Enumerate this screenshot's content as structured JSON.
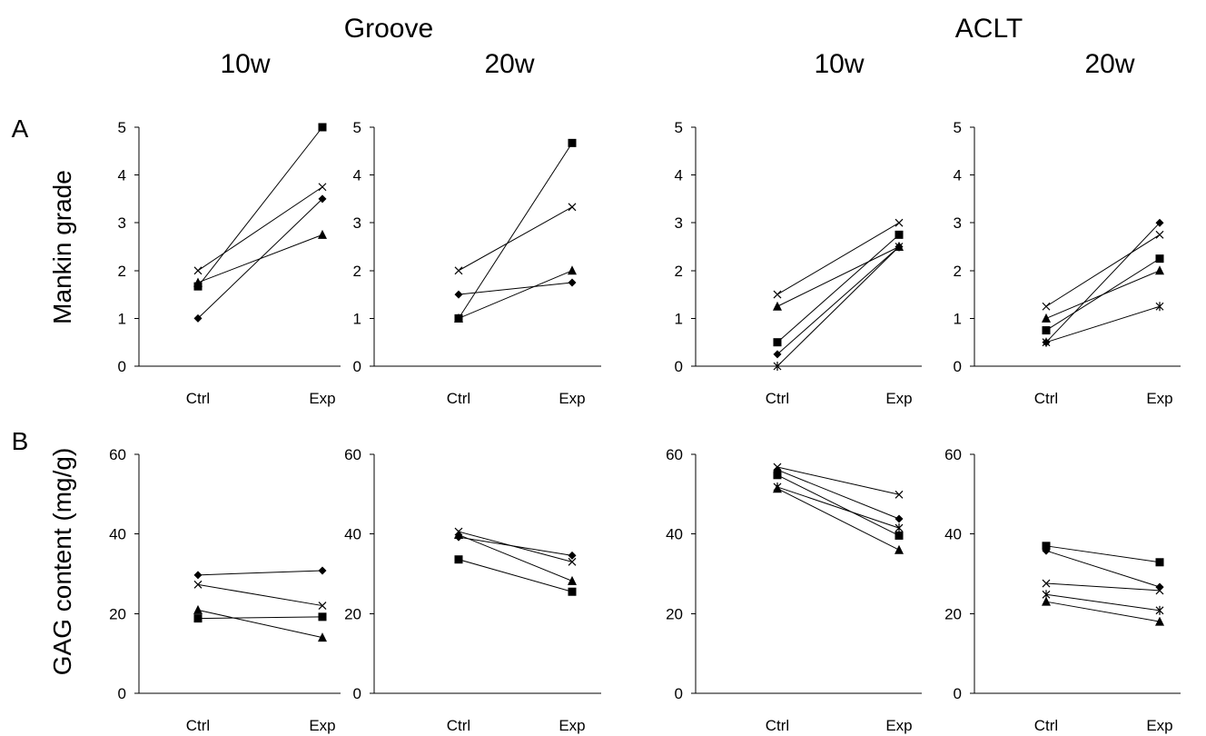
{
  "groups": [
    {
      "label": "Groove",
      "subcharts": [
        "10w",
        "20w"
      ]
    },
    {
      "label": "ACLT",
      "subcharts": [
        "10w",
        "20w"
      ]
    }
  ],
  "rows": [
    {
      "letter": "A",
      "ylabel": "Mankin grade",
      "yticks": [
        "0",
        "1",
        "2",
        "3",
        "4",
        "5"
      ],
      "ylim": [
        0,
        5
      ]
    },
    {
      "letter": "B",
      "ylabel": "GAG content (mg/g)",
      "yticks": [
        "0",
        "20",
        "40",
        "60"
      ],
      "ylim": [
        0,
        60
      ]
    }
  ],
  "chart_data": [
    {
      "type": "line",
      "group": "Groove",
      "timepoint": "10w",
      "row": "A",
      "categories": [
        "Ctrl",
        "Exp"
      ],
      "ylim": [
        0,
        5
      ],
      "ylabel": "Mankin grade",
      "series": [
        {
          "marker": "diamond",
          "values": [
            1.0,
            3.5
          ]
        },
        {
          "marker": "square",
          "values": [
            1.67,
            5.0
          ]
        },
        {
          "marker": "triangle",
          "values": [
            1.75,
            2.75
          ]
        },
        {
          "marker": "x",
          "values": [
            2.0,
            3.75
          ]
        }
      ]
    },
    {
      "type": "line",
      "group": "Groove",
      "timepoint": "20w",
      "row": "A",
      "categories": [
        "Ctrl",
        "Exp"
      ],
      "ylim": [
        0,
        5
      ],
      "series": [
        {
          "marker": "diamond",
          "values": [
            1.5,
            1.75
          ]
        },
        {
          "marker": "square",
          "values": [
            1.0,
            4.67
          ]
        },
        {
          "marker": "triangle",
          "values": [
            1.0,
            2.0
          ]
        },
        {
          "marker": "x",
          "values": [
            2.0,
            3.33
          ]
        }
      ]
    },
    {
      "type": "line",
      "group": "ACLT",
      "timepoint": "10w",
      "row": "A",
      "categories": [
        "Ctrl",
        "Exp"
      ],
      "ylim": [
        0,
        5
      ],
      "series": [
        {
          "marker": "diamond",
          "values": [
            0.25,
            2.5
          ]
        },
        {
          "marker": "square",
          "values": [
            0.5,
            2.75
          ]
        },
        {
          "marker": "triangle",
          "values": [
            1.25,
            2.5
          ]
        },
        {
          "marker": "x",
          "values": [
            1.5,
            3.0
          ]
        },
        {
          "marker": "star",
          "values": [
            0.0,
            2.5
          ]
        }
      ]
    },
    {
      "type": "line",
      "group": "ACLT",
      "timepoint": "20w",
      "row": "A",
      "categories": [
        "Ctrl",
        "Exp"
      ],
      "ylim": [
        0,
        5
      ],
      "series": [
        {
          "marker": "diamond",
          "values": [
            0.5,
            3.0
          ]
        },
        {
          "marker": "square",
          "values": [
            0.75,
            2.25
          ]
        },
        {
          "marker": "triangle",
          "values": [
            1.0,
            2.0
          ]
        },
        {
          "marker": "x",
          "values": [
            1.25,
            2.75
          ]
        },
        {
          "marker": "star",
          "values": [
            0.5,
            1.25
          ]
        }
      ]
    },
    {
      "type": "line",
      "group": "Groove",
      "timepoint": "10w",
      "row": "B",
      "categories": [
        "Ctrl",
        "Exp"
      ],
      "ylim": [
        0,
        60
      ],
      "ylabel": "GAG content (mg/g)",
      "series": [
        {
          "marker": "diamond",
          "values": [
            29.7,
            30.8
          ]
        },
        {
          "marker": "square",
          "values": [
            18.8,
            19.2
          ]
        },
        {
          "marker": "triangle",
          "values": [
            20.9,
            14.0
          ]
        },
        {
          "marker": "x",
          "values": [
            27.3,
            22.0
          ]
        }
      ]
    },
    {
      "type": "line",
      "group": "Groove",
      "timepoint": "20w",
      "row": "B",
      "categories": [
        "Ctrl",
        "Exp"
      ],
      "ylim": [
        0,
        60
      ],
      "series": [
        {
          "marker": "diamond",
          "values": [
            39.2,
            34.6
          ]
        },
        {
          "marker": "square",
          "values": [
            33.6,
            25.5
          ]
        },
        {
          "marker": "triangle",
          "values": [
            39.8,
            28.2
          ]
        },
        {
          "marker": "x",
          "values": [
            40.6,
            33.0
          ]
        }
      ]
    },
    {
      "type": "line",
      "group": "ACLT",
      "timepoint": "10w",
      "row": "B",
      "categories": [
        "Ctrl",
        "Exp"
      ],
      "ylim": [
        0,
        60
      ],
      "series": [
        {
          "marker": "diamond",
          "values": [
            56.1,
            43.8
          ]
        },
        {
          "marker": "square",
          "values": [
            54.8,
            39.6
          ]
        },
        {
          "marker": "triangle",
          "values": [
            51.4,
            36.0
          ]
        },
        {
          "marker": "x",
          "values": [
            56.8,
            49.9
          ]
        },
        {
          "marker": "star",
          "values": [
            51.8,
            41.5
          ]
        }
      ]
    },
    {
      "type": "line",
      "group": "ACLT",
      "timepoint": "20w",
      "row": "B",
      "categories": [
        "Ctrl",
        "Exp"
      ],
      "ylim": [
        0,
        60
      ],
      "series": [
        {
          "marker": "diamond",
          "values": [
            35.8,
            26.7
          ]
        },
        {
          "marker": "square",
          "values": [
            37.0,
            32.9
          ]
        },
        {
          "marker": "triangle",
          "values": [
            23.0,
            18.0
          ]
        },
        {
          "marker": "x",
          "values": [
            27.6,
            25.8
          ]
        },
        {
          "marker": "star",
          "values": [
            24.8,
            20.8
          ]
        }
      ]
    }
  ]
}
